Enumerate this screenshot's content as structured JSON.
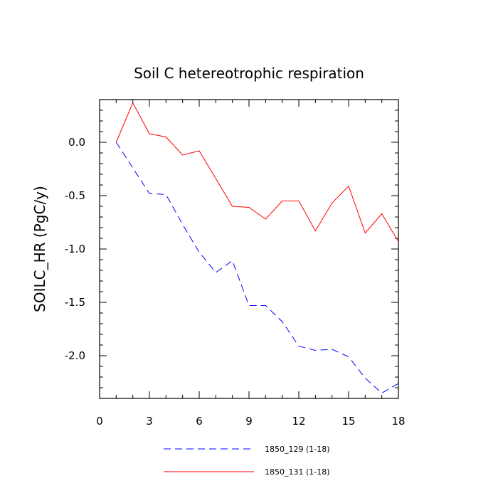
{
  "chart_data": {
    "type": "line",
    "title": "Soil C hetereotrophic respiration",
    "xlabel": "",
    "ylabel": "SOILC_HR  (PgC/y)",
    "xlim": [
      0,
      18
    ],
    "ylim": [
      -2.4,
      0.4
    ],
    "x_ticks": [
      0,
      3,
      6,
      9,
      12,
      15,
      18
    ],
    "x_tick_labels": [
      "0",
      "3",
      "6",
      "9",
      "12",
      "15",
      "18"
    ],
    "y_ticks": [
      0.0,
      -0.5,
      -1.0,
      -1.5,
      -2.0
    ],
    "y_tick_labels": [
      "0.0",
      "-0.5",
      "-1.0",
      "-1.5",
      "-2.0"
    ],
    "grid": false,
    "legend_placement": "bottom",
    "x": [
      1,
      2,
      3,
      4,
      5,
      6,
      7,
      8,
      9,
      10,
      11,
      12,
      13,
      14,
      15,
      16,
      17,
      18
    ],
    "series": [
      {
        "name": "1850_129 (1-18)",
        "color": "#0000ff",
        "style": "dashed",
        "values": [
          0.0,
          -0.24,
          -0.48,
          -0.49,
          -0.77,
          -1.03,
          -1.22,
          -1.11,
          -1.53,
          -1.53,
          -1.68,
          -1.91,
          -1.95,
          -1.94,
          -2.01,
          -2.21,
          -2.35,
          -2.26
        ]
      },
      {
        "name": "1850_131 (1-18)",
        "color": "#ff0000",
        "style": "solid",
        "values": [
          0.0,
          0.37,
          0.08,
          0.05,
          -0.12,
          -0.08,
          -0.34,
          -0.6,
          -0.61,
          -0.72,
          -0.55,
          -0.55,
          -0.83,
          -0.57,
          -0.41,
          -0.85,
          -0.67,
          -0.93
        ]
      }
    ]
  }
}
